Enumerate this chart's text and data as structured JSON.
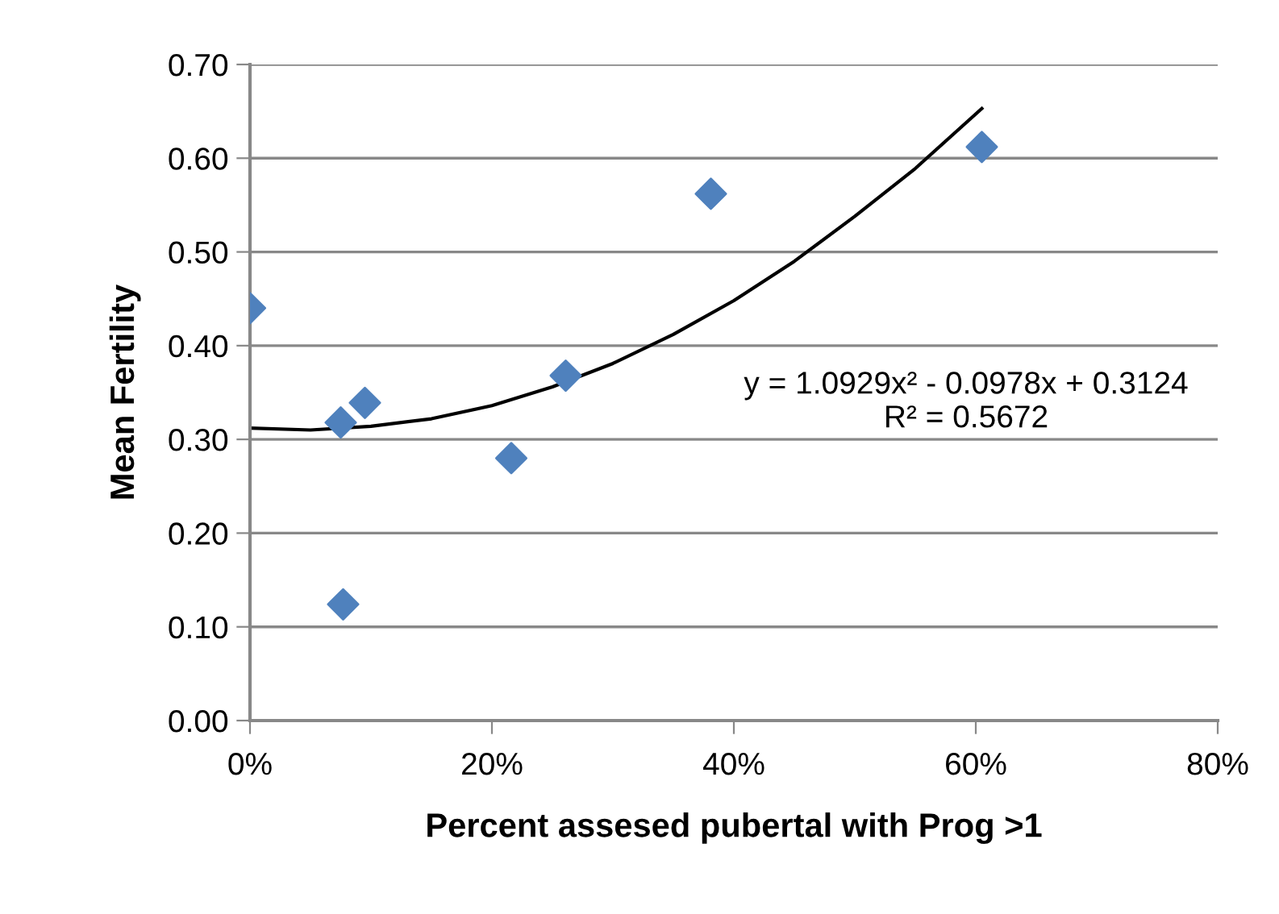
{
  "chart_data": {
    "type": "scatter",
    "xlabel": "Percent assesed pubertal with Prog >1",
    "ylabel": "Mean Fertility",
    "series": [
      {
        "color": "#4f81bd",
        "marker": "diamond",
        "x": [
          0.0,
          0.075,
          0.095,
          0.077,
          0.216,
          0.261,
          0.381,
          0.605
        ],
        "values": [
          0.44,
          0.318,
          0.339,
          0.124,
          0.28,
          0.368,
          0.562,
          0.612
        ]
      },
      {
        "type": "line",
        "color": "#000000",
        "marker": "none",
        "line_style": "solid",
        "x": [
          0.0,
          0.05,
          0.1,
          0.15,
          0.2,
          0.25,
          0.3,
          0.35,
          0.4,
          0.45,
          0.5,
          0.55,
          0.605
        ],
        "values": [
          0.312,
          0.31,
          0.314,
          0.322,
          0.336,
          0.356,
          0.381,
          0.412,
          0.448,
          0.49,
          0.538,
          0.589,
          0.653
        ]
      }
    ],
    "annotations": [
      "y = 1.0929x² - 0.0978x + 0.3124\nR² = 0.5672"
    ],
    "xlim": [
      0,
      0.8
    ],
    "xticks": [
      {
        "value": 0,
        "label": "0%"
      },
      {
        "value": 0.2,
        "label": "20%"
      },
      {
        "value": 0.4,
        "label": "40%"
      },
      {
        "value": 0.6,
        "label": "60%"
      },
      {
        "value": 0.8,
        "label": "80%"
      }
    ],
    "ylim": [
      0,
      0.7
    ],
    "yticks": [
      {
        "value": 0,
        "label": "0.00"
      },
      {
        "value": 0.1,
        "label": "0.10"
      },
      {
        "value": 0.2,
        "label": "0.20"
      },
      {
        "value": 0.3,
        "label": "0.30"
      },
      {
        "value": 0.4,
        "label": "0.40"
      },
      {
        "value": 0.5,
        "label": "0.50"
      },
      {
        "value": 0.6,
        "label": "0.60"
      },
      {
        "value": 0.7,
        "label": "0.70"
      }
    ],
    "grid": "y",
    "legend": false
  }
}
